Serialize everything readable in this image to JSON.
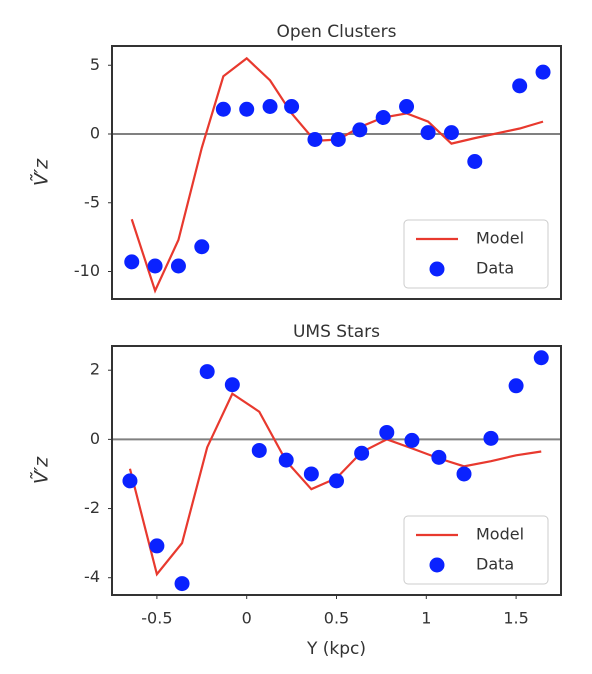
{
  "chart_data": [
    {
      "type": "scatter",
      "title": "Open Clusters",
      "ylabel": "Ṽ′z",
      "xlim": [
        -0.75,
        1.75
      ],
      "ylim": [
        -12,
        6.4
      ],
      "yticks": [
        -10,
        -5,
        0,
        5
      ],
      "reference_line": 0,
      "legend": "lower right",
      "series": [
        {
          "name": "Model",
          "type": "line",
          "color": "#e8392e",
          "x": [
            -0.64,
            -0.51,
            -0.38,
            -0.25,
            -0.13,
            0,
            0.13,
            0.25,
            0.38,
            0.51,
            0.63,
            0.76,
            0.89,
            1.01,
            1.14,
            1.27,
            1.52,
            1.65
          ],
          "values": [
            -6.2,
            -11.4,
            -7.7,
            -1.0,
            4.2,
            5.5,
            3.9,
            1.5,
            -0.5,
            -0.4,
            0.5,
            1.2,
            1.5,
            0.9,
            -0.7,
            -0.3,
            0.4,
            0.9
          ]
        },
        {
          "name": "Data",
          "type": "scatter",
          "color": "#0a22ff",
          "x": [
            -0.64,
            -0.51,
            -0.38,
            -0.25,
            -0.13,
            0,
            0.13,
            0.25,
            0.38,
            0.51,
            0.63,
            0.76,
            0.89,
            1.01,
            1.14,
            1.27,
            1.52,
            1.65
          ],
          "values": [
            -9.3,
            -9.6,
            -9.6,
            -8.2,
            1.8,
            1.8,
            2.0,
            2.0,
            -0.4,
            -0.4,
            0.3,
            1.2,
            2.0,
            0.1,
            0.1,
            -2.0,
            3.5,
            4.5
          ]
        }
      ]
    },
    {
      "type": "scatter",
      "title": "UMS Stars",
      "ylabel": "Ṽ′z",
      "xlabel": "Y (kpc)",
      "xlim": [
        -0.75,
        1.75
      ],
      "ylim": [
        -4.5,
        2.7
      ],
      "xticks": [
        -0.5,
        0.0,
        0.5,
        1.0,
        1.5
      ],
      "yticks": [
        -4,
        -2,
        0,
        2
      ],
      "reference_line": 0,
      "legend": "lower right",
      "series": [
        {
          "name": "Model",
          "type": "line",
          "color": "#e8392e",
          "x": [
            -0.65,
            -0.5,
            -0.36,
            -0.22,
            -0.08,
            0.07,
            0.22,
            0.36,
            0.5,
            0.64,
            0.78,
            0.92,
            1.07,
            1.21,
            1.36,
            1.5,
            1.64
          ],
          "values": [
            -0.85,
            -3.9,
            -3.0,
            -0.23,
            1.32,
            0.8,
            -0.63,
            -1.44,
            -1.12,
            -0.37,
            0,
            -0.26,
            -0.55,
            -0.78,
            -0.63,
            -0.46,
            -0.35
          ]
        },
        {
          "name": "Data",
          "type": "scatter",
          "color": "#0a22ff",
          "x": [
            -0.65,
            -0.5,
            -0.36,
            -0.22,
            -0.08,
            0.07,
            0.22,
            0.36,
            0.5,
            0.64,
            0.78,
            0.92,
            1.07,
            1.21,
            1.36,
            1.5,
            1.64
          ],
          "values": [
            -1.2,
            -3.08,
            -4.17,
            1.96,
            1.58,
            -0.32,
            -0.6,
            -1.0,
            -1.2,
            -0.4,
            0.2,
            -0.03,
            -0.52,
            -1.0,
            0.03,
            1.55,
            2.36
          ]
        }
      ]
    }
  ]
}
